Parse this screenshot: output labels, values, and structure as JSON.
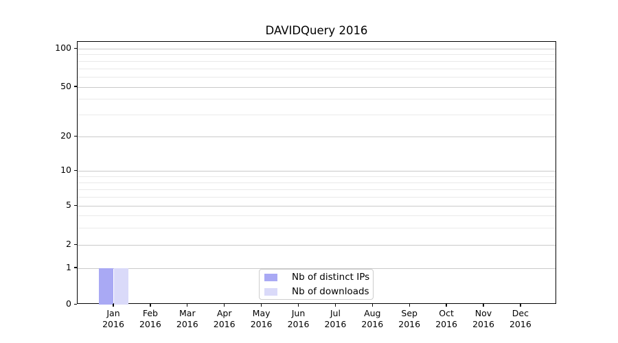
{
  "chart_data": {
    "type": "bar",
    "title": "DAVIDQuery 2016",
    "x_tick_months": [
      "Jan",
      "Feb",
      "Mar",
      "Apr",
      "May",
      "Jun",
      "Jul",
      "Aug",
      "Sep",
      "Oct",
      "Nov",
      "Dec"
    ],
    "x_tick_year": "2016",
    "y_ticks": [
      0,
      1,
      2,
      5,
      10,
      20,
      50,
      100
    ],
    "y_minor_gridlines": [
      3,
      4,
      6,
      7,
      8,
      9,
      30,
      40,
      60,
      70,
      80,
      90
    ],
    "yscale": "log above 1, 0 shown at baseline",
    "ylim": [
      0,
      112
    ],
    "grid": true,
    "legend_position": "lower center",
    "series": [
      {
        "name": "Nb of distinct IPs",
        "color": "#a9a9f4",
        "values": [
          1,
          0,
          0,
          0,
          0,
          0,
          0,
          0,
          0,
          0,
          0,
          0
        ]
      },
      {
        "name": "Nb of downloads",
        "color": "#dadaf9",
        "values": [
          1,
          0,
          0,
          0,
          0,
          0,
          0,
          0,
          0,
          0,
          0,
          0
        ]
      }
    ]
  }
}
